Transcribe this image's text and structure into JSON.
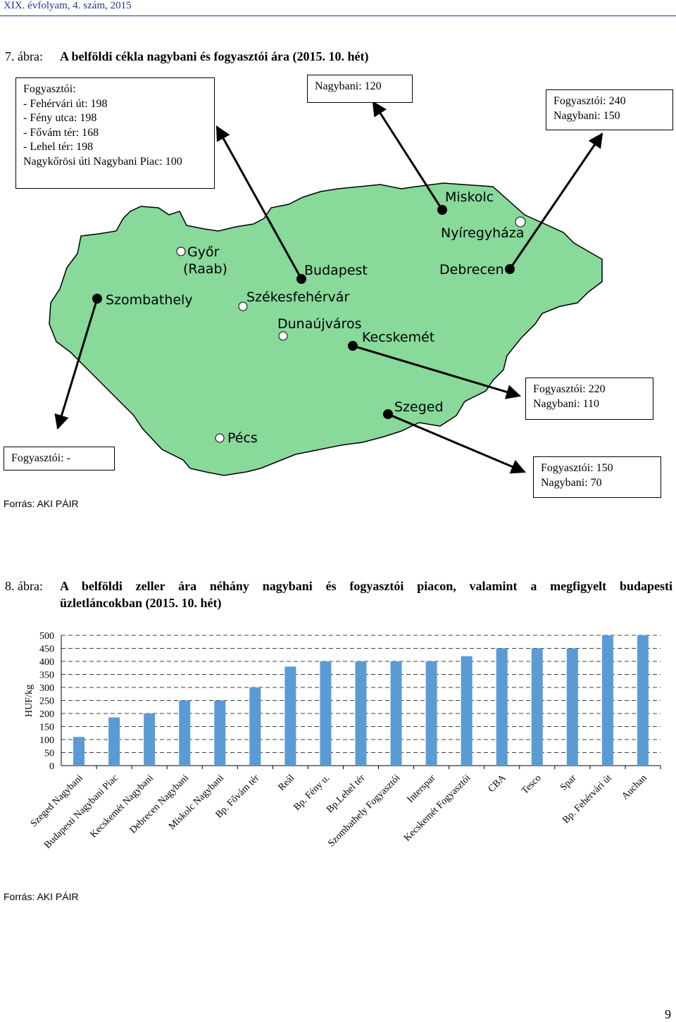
{
  "header": {
    "journal": "XIX. évfolyam, 4. szám, 2015"
  },
  "figure7": {
    "label": "7. ábra:",
    "title": "A belföldi cékla nagybani és fogyasztói ára (2015. 10. hét)",
    "boxes": {
      "budapest": [
        "Fogyasztói:",
        "- Fehérvári út:  198",
        "- Fény utca: 198",
        "- Fővám tér: 168",
        "- Lehel tér: 198",
        "Nagykőrösi úti Nagybani Piac: 100"
      ],
      "miskolc": [
        "Nagybani: 120"
      ],
      "debrecen": [
        "Fogyasztói: 240",
        "Nagybani: 150"
      ],
      "kecskemet": [
        "Fogyasztói: 220",
        "Nagybani: 110"
      ],
      "szeged": [
        "Fogyasztói: 150",
        "Nagybani: 70"
      ],
      "szombathely": [
        "Fogyasztói: -"
      ]
    },
    "cities": {
      "miskolc": "Miskolc",
      "nyiregyhaza": "Nyíregyháza",
      "debrecen": "Debrecen",
      "budapest": "Budapest",
      "gyor1": "Győr",
      "gyor2": "(Raab)",
      "szombathely": "Szombathely",
      "szekesfehervar": "Székesfehérvár",
      "dunaujvaros": "Dunaújváros",
      "kecskemet": "Kecskemét",
      "szeged": "Szeged",
      "pecs": "Pécs"
    },
    "source": "Forrás: AKI PÁIR",
    "colors": {
      "map_fill": "#88d99a"
    }
  },
  "figure8": {
    "label": "8. ábra:",
    "title_line1": "A belföldi zeller ára néhány nagybani és fogyasztói piacon, valamint a megfigyelt budapesti",
    "title_line2": "üzletláncokban (2015. 10. hét)",
    "source": "Forrás: AKI PÁIR"
  },
  "chart_data": {
    "type": "bar",
    "title": "",
    "xlabel": "",
    "ylabel": "HUF/kg",
    "ylim": [
      0,
      500
    ],
    "yticks": [
      "0",
      "50",
      "100",
      "150",
      "200",
      "250",
      "300",
      "350",
      "400",
      "450",
      "500"
    ],
    "grid": true,
    "categories": [
      "Szeged Nagybani",
      "Budapesti Nagybani Piac",
      "Kecskemét Nagybani",
      "Debrecen Nagybani",
      "Miskolc  Nagybani",
      "Bp. Fővám tér",
      "Reál",
      "Bp. Fény u.",
      "Bp.Lehel tér",
      "Szombathely Fogyasztói",
      "Interspar",
      "Kecskemét Fogyasztói",
      "CBA",
      "Tesco",
      "Spar",
      "Bp. Fehérvári út",
      "Auchan"
    ],
    "values": [
      110,
      185,
      200,
      250,
      250,
      300,
      380,
      400,
      400,
      400,
      400,
      420,
      450,
      450,
      450,
      500,
      500
    ],
    "colors": {
      "bar": "#5b9bd5"
    }
  },
  "page": {
    "number": "9"
  }
}
